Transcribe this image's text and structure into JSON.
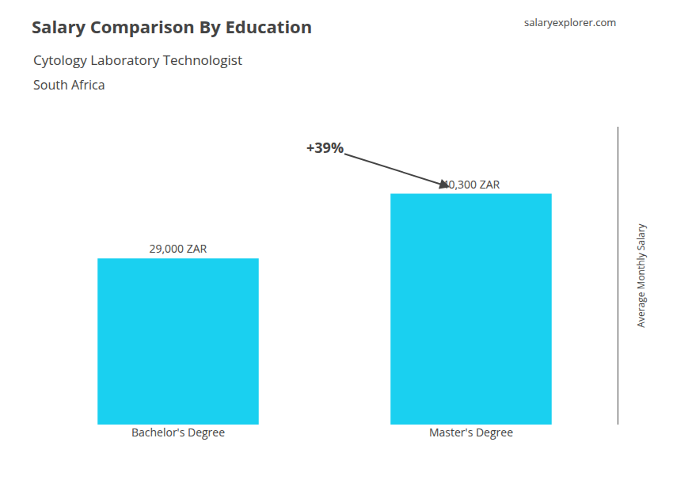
{
  "chart_data": {
    "type": "bar",
    "title": "Salary Comparison By Education",
    "subtitle": [
      "Cytology Laboratory Technologist",
      "South Africa"
    ],
    "categories": [
      "Bachelor's Degree",
      "Master's Degree"
    ],
    "values": [
      29000,
      40300
    ],
    "value_labels": [
      "29,000 ZAR",
      "40,300 ZAR"
    ],
    "data_labels": true,
    "color": "#1ad0f0",
    "ylabel": "Average Monthly Salary",
    "ylim": [
      0,
      52000
    ],
    "tick_labels": "x",
    "grid": false,
    "annotations": [
      {
        "text": "+39%",
        "from": "Bachelor's Degree",
        "to": "Master's Degree"
      },
      {
        "text": "salaryexplorer.com"
      }
    ]
  }
}
